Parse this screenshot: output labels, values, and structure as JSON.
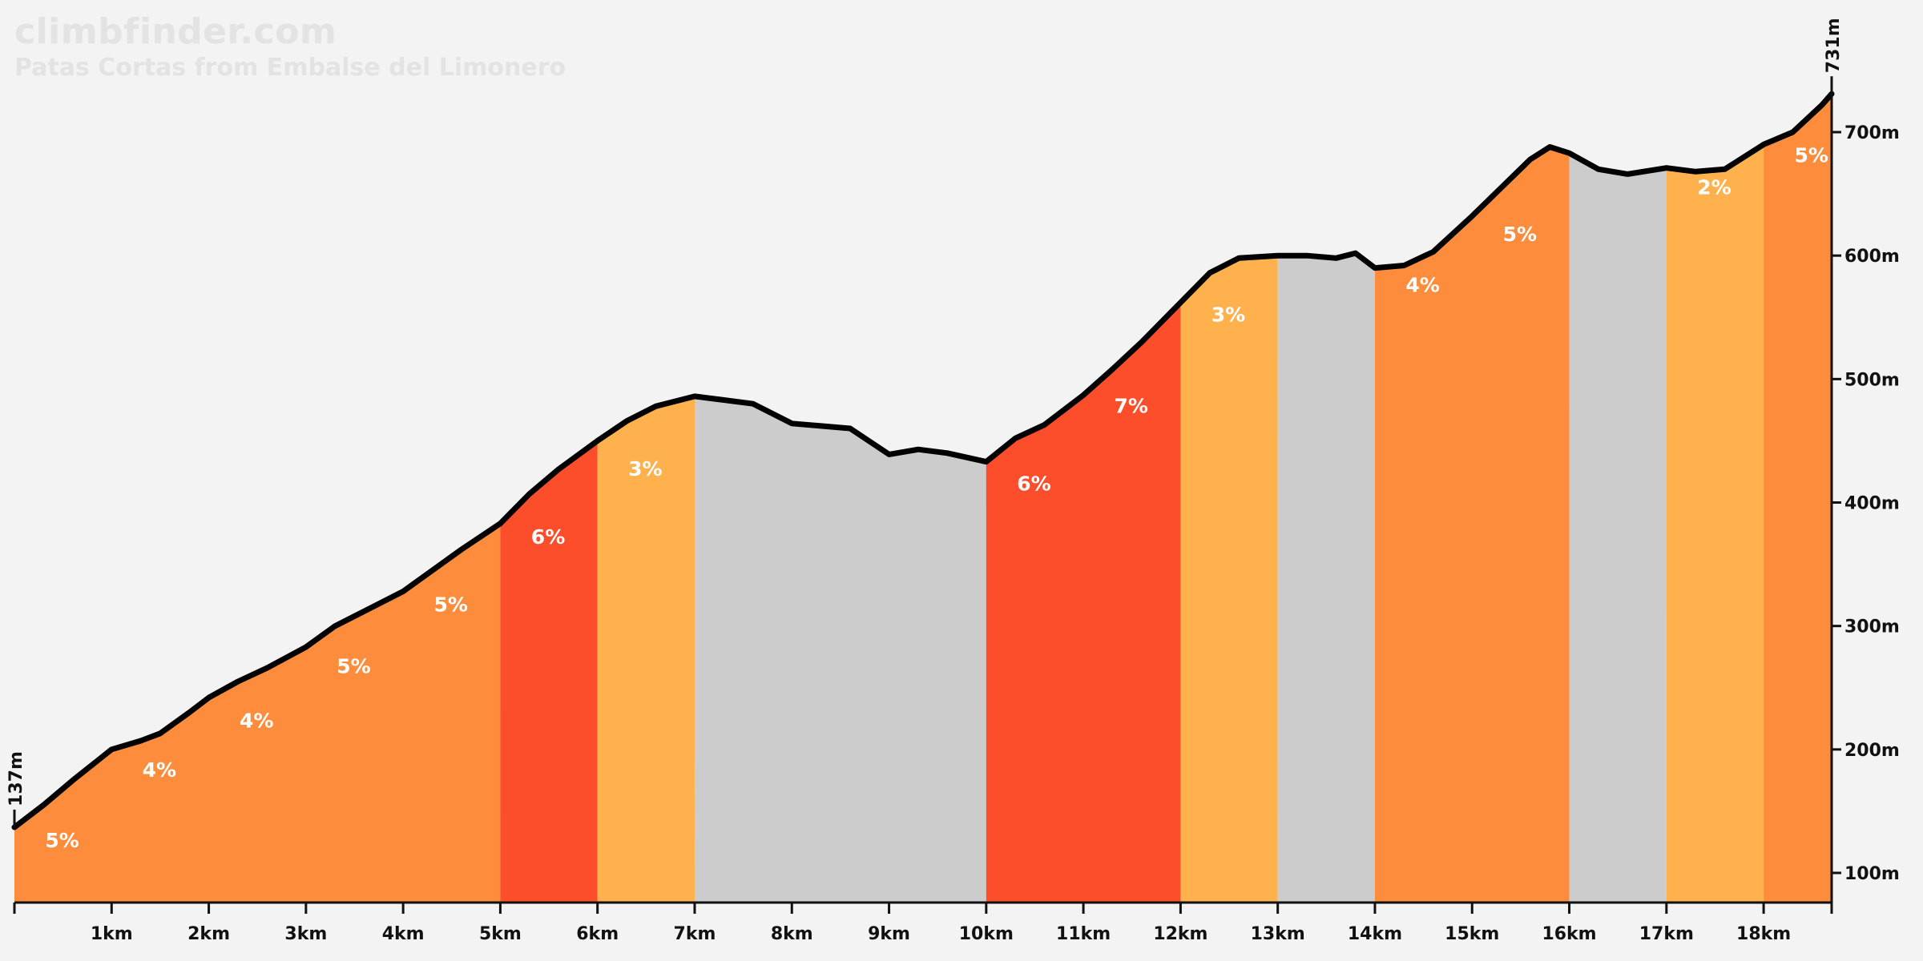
{
  "brand": "climbfinder.com",
  "subtitle": "Patas Cortas from Embalse del Limonero",
  "colors": {
    "background": "#f3f3f3",
    "grade_2_3": "#feb14c",
    "grade_4_5": "#fd8d3c",
    "grade_6_7": "#fc4e2a",
    "flat_descent": "#cccccc",
    "profile_line": "#000000",
    "grade_label": "#ffffff",
    "axis": "#111111"
  },
  "chart_data": {
    "type": "area",
    "start_label": "137m",
    "end_label": "731m",
    "x_unit": "km",
    "xlim": [
      0,
      18.7
    ],
    "ylim": [
      78,
      750
    ],
    "x_ticks": [
      "1km",
      "2km",
      "3km",
      "4km",
      "5km",
      "6km",
      "7km",
      "8km",
      "9km",
      "10km",
      "11km",
      "12km",
      "13km",
      "14km",
      "15km",
      "16km",
      "17km",
      "18km"
    ],
    "y_ticks": [
      "100m",
      "200m",
      "300m",
      "400m",
      "500m",
      "600m",
      "700m"
    ],
    "y_tick_values": [
      100,
      200,
      300,
      400,
      500,
      600,
      700
    ],
    "segments": [
      {
        "from": 0,
        "to": 5,
        "color": "#fd8d3c"
      },
      {
        "from": 5,
        "to": 6,
        "color": "#fc4e2a"
      },
      {
        "from": 6,
        "to": 7,
        "color": "#feb14c"
      },
      {
        "from": 7,
        "to": 10,
        "color": "#cccccc"
      },
      {
        "from": 10,
        "to": 12,
        "color": "#fc4e2a"
      },
      {
        "from": 12,
        "to": 13,
        "color": "#feb14c"
      },
      {
        "from": 13,
        "to": 14,
        "color": "#cccccc"
      },
      {
        "from": 14,
        "to": 16,
        "color": "#fd8d3c"
      },
      {
        "from": 16,
        "to": 17,
        "color": "#cccccc"
      },
      {
        "from": 17,
        "to": 18,
        "color": "#feb14c"
      },
      {
        "from": 18,
        "to": 18.7,
        "color": "#fd8d3c"
      }
    ],
    "grade_labels": [
      {
        "x": 0.3,
        "y": 135,
        "text": "5%"
      },
      {
        "x": 1.3,
        "y": 192,
        "text": "4%"
      },
      {
        "x": 2.3,
        "y": 232,
        "text": "4%"
      },
      {
        "x": 3.3,
        "y": 276,
        "text": "5%"
      },
      {
        "x": 4.3,
        "y": 326,
        "text": "5%"
      },
      {
        "x": 5.3,
        "y": 381,
        "text": "6%"
      },
      {
        "x": 6.3,
        "y": 436,
        "text": "3%"
      },
      {
        "x": 10.3,
        "y": 424,
        "text": "6%"
      },
      {
        "x": 11.3,
        "y": 487,
        "text": "7%"
      },
      {
        "x": 12.3,
        "y": 561,
        "text": "3%"
      },
      {
        "x": 14.3,
        "y": 585,
        "text": "4%"
      },
      {
        "x": 15.3,
        "y": 626,
        "text": "5%"
      },
      {
        "x": 17.3,
        "y": 664,
        "text": "2%"
      },
      {
        "x": 18.3,
        "y": 690,
        "text": "5%"
      }
    ],
    "profile": [
      [
        0,
        137
      ],
      [
        0.3,
        155
      ],
      [
        0.6,
        175
      ],
      [
        1.0,
        200
      ],
      [
        1.3,
        207
      ],
      [
        1.5,
        213
      ],
      [
        1.8,
        230
      ],
      [
        2.0,
        242
      ],
      [
        2.3,
        255
      ],
      [
        2.6,
        266
      ],
      [
        3.0,
        283
      ],
      [
        3.3,
        300
      ],
      [
        3.6,
        312
      ],
      [
        4.0,
        328
      ],
      [
        4.3,
        345
      ],
      [
        4.6,
        362
      ],
      [
        5.0,
        383
      ],
      [
        5.3,
        407
      ],
      [
        5.6,
        427
      ],
      [
        6.0,
        450
      ],
      [
        6.3,
        466
      ],
      [
        6.6,
        478
      ],
      [
        7.0,
        486
      ],
      [
        7.3,
        483
      ],
      [
        7.6,
        480
      ],
      [
        8.0,
        464
      ],
      [
        8.3,
        462
      ],
      [
        8.6,
        460
      ],
      [
        9.0,
        439
      ],
      [
        9.3,
        443
      ],
      [
        9.6,
        440
      ],
      [
        10.0,
        433
      ],
      [
        10.3,
        452
      ],
      [
        10.6,
        463
      ],
      [
        11.0,
        487
      ],
      [
        11.3,
        508
      ],
      [
        11.6,
        530
      ],
      [
        12.0,
        562
      ],
      [
        12.3,
        586
      ],
      [
        12.6,
        598
      ],
      [
        13.0,
        600
      ],
      [
        13.3,
        600
      ],
      [
        13.6,
        598
      ],
      [
        13.8,
        602
      ],
      [
        14.0,
        590
      ],
      [
        14.3,
        592
      ],
      [
        14.6,
        603
      ],
      [
        15.0,
        632
      ],
      [
        15.3,
        655
      ],
      [
        15.6,
        678
      ],
      [
        15.8,
        688
      ],
      [
        16.0,
        683
      ],
      [
        16.3,
        670
      ],
      [
        16.6,
        666
      ],
      [
        17.0,
        671
      ],
      [
        17.3,
        668
      ],
      [
        17.6,
        670
      ],
      [
        18.0,
        690
      ],
      [
        18.3,
        700
      ],
      [
        18.6,
        722
      ],
      [
        18.7,
        731
      ]
    ]
  }
}
